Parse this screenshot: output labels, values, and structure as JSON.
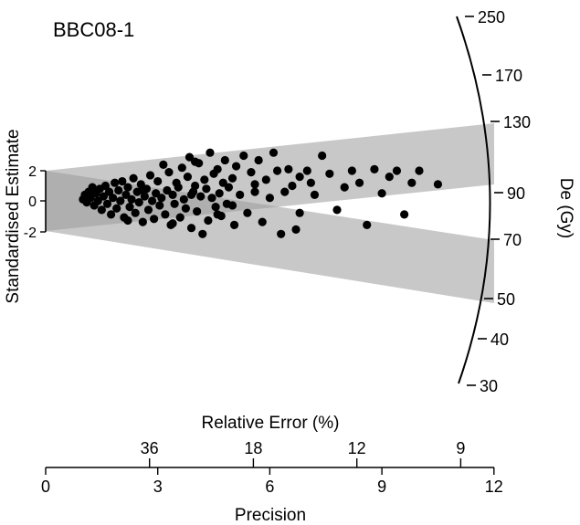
{
  "chart_data": {
    "type": "radial",
    "title": "BBC08-1",
    "y_axis_label": "Standardised Estimate",
    "y_ticks": [
      "2",
      "0",
      "-2"
    ],
    "top_axis_label": "Relative Error (%)",
    "top_ticks": [
      "36",
      "18",
      "12",
      "9"
    ],
    "bottom_axis_label": "Precision",
    "bottom_ticks": [
      "0",
      "3",
      "6",
      "9",
      "12"
    ],
    "xlim": [
      0,
      12
    ],
    "arc_axis_label": "De (Gy)",
    "arc_ticks": [
      "250",
      "170",
      "130",
      "90",
      "70",
      "50",
      "40",
      "30"
    ],
    "bands": [
      {
        "name": "upper",
        "center_slope": 0.155
      },
      {
        "name": "lower",
        "center_slope": -0.105
      }
    ],
    "points": [
      [
        1.0,
        0.1
      ],
      [
        1.05,
        0.4
      ],
      [
        1.1,
        -0.1
      ],
      [
        1.15,
        0.6
      ],
      [
        1.2,
        0.2
      ],
      [
        1.25,
        0.9
      ],
      [
        1.3,
        -0.3
      ],
      [
        1.35,
        0.5
      ],
      [
        1.4,
        0.0
      ],
      [
        1.45,
        0.8
      ],
      [
        1.5,
        -0.6
      ],
      [
        1.55,
        0.3
      ],
      [
        1.6,
        1.0
      ],
      [
        1.65,
        -0.2
      ],
      [
        1.7,
        0.6
      ],
      [
        1.75,
        -0.9
      ],
      [
        1.8,
        0.2
      ],
      [
        1.85,
        1.2
      ],
      [
        1.9,
        -0.5
      ],
      [
        1.95,
        0.7
      ],
      [
        2.0,
        0.0
      ],
      [
        2.05,
        1.3
      ],
      [
        2.1,
        -1.1
      ],
      [
        2.15,
        0.4
      ],
      [
        2.2,
        0.9
      ],
      [
        2.25,
        -0.4
      ],
      [
        2.3,
        0.1
      ],
      [
        2.35,
        1.5
      ],
      [
        2.4,
        -0.8
      ],
      [
        2.45,
        0.6
      ],
      [
        2.5,
        -0.1
      ],
      [
        2.55,
        1.1
      ],
      [
        2.6,
        -1.4
      ],
      [
        2.65,
        0.3
      ],
      [
        2.7,
        0.8
      ],
      [
        2.75,
        -0.6
      ],
      [
        2.8,
        1.7
      ],
      [
        2.85,
        0.0
      ],
      [
        2.9,
        -1.2
      ],
      [
        2.95,
        0.5
      ],
      [
        3.0,
        1.3
      ],
      [
        3.05,
        -0.3
      ],
      [
        3.1,
        0.2
      ],
      [
        3.15,
        2.4
      ],
      [
        3.2,
        -0.9
      ],
      [
        3.25,
        0.7
      ],
      [
        3.3,
        1.9
      ],
      [
        3.35,
        -1.6
      ],
      [
        3.4,
        0.4
      ],
      [
        3.45,
        -0.2
      ],
      [
        3.5,
        1.2
      ],
      [
        3.55,
        0.9
      ],
      [
        3.6,
        -1.1
      ],
      [
        3.65,
        2.2
      ],
      [
        3.7,
        0.1
      ],
      [
        3.75,
        -0.5
      ],
      [
        3.8,
        1.6
      ],
      [
        3.85,
        2.9
      ],
      [
        3.9,
        -1.8
      ],
      [
        3.95,
        0.6
      ],
      [
        4.0,
        1.0
      ],
      [
        4.05,
        -0.7
      ],
      [
        4.1,
        2.5
      ],
      [
        4.15,
        0.3
      ],
      [
        4.2,
        -2.2
      ],
      [
        4.25,
        1.4
      ],
      [
        4.3,
        0.8
      ],
      [
        4.35,
        -1.3
      ],
      [
        4.4,
        3.2
      ],
      [
        4.45,
        0.2
      ],
      [
        4.5,
        1.8
      ],
      [
        4.55,
        -0.4
      ],
      [
        4.6,
        2.1
      ],
      [
        4.65,
        0.5
      ],
      [
        4.7,
        -1.0
      ],
      [
        4.75,
        1.2
      ],
      [
        4.8,
        2.7
      ],
      [
        4.85,
        -0.2
      ],
      [
        4.9,
        0.9
      ],
      [
        5.0,
        1.5
      ],
      [
        5.05,
        -1.6
      ],
      [
        5.1,
        2.3
      ],
      [
        5.2,
        0.4
      ],
      [
        5.3,
        3.0
      ],
      [
        5.4,
        -0.8
      ],
      [
        5.5,
        1.9
      ],
      [
        5.6,
        0.6
      ],
      [
        5.7,
        2.7
      ],
      [
        5.8,
        -1.4
      ],
      [
        5.9,
        1.4
      ],
      [
        6.0,
        0.2
      ],
      [
        6.1,
        3.2
      ],
      [
        6.2,
        2.0
      ],
      [
        6.3,
        -2.2
      ],
      [
        6.4,
        0.6
      ],
      [
        6.5,
        2.1
      ],
      [
        6.6,
        1.0
      ],
      [
        6.7,
        -1.9
      ],
      [
        6.8,
        1.6
      ],
      [
        7.0,
        2.0
      ],
      [
        7.2,
        0.4
      ],
      [
        7.4,
        3.0
      ],
      [
        7.6,
        1.8
      ],
      [
        7.8,
        -0.6
      ],
      [
        8.0,
        0.9
      ],
      [
        8.2,
        2.0
      ],
      [
        8.4,
        1.2
      ],
      [
        8.6,
        -1.6
      ],
      [
        8.8,
        2.1
      ],
      [
        9.0,
        0.5
      ],
      [
        9.2,
        1.6
      ],
      [
        9.4,
        2.0
      ],
      [
        9.6,
        -0.9
      ],
      [
        9.8,
        1.2
      ],
      [
        10.0,
        2.0
      ],
      [
        10.5,
        1.1
      ],
      [
        3.4,
        -1.5
      ],
      [
        4.0,
        2.6
      ],
      [
        5.6,
        1.1
      ],
      [
        2.2,
        -1.3
      ],
      [
        6.8,
        -0.8
      ],
      [
        3.9,
        0.4
      ],
      [
        4.6,
        -0.9
      ],
      [
        7.1,
        1.2
      ],
      [
        2.6,
        0.7
      ],
      [
        5.0,
        -0.3
      ]
    ]
  }
}
